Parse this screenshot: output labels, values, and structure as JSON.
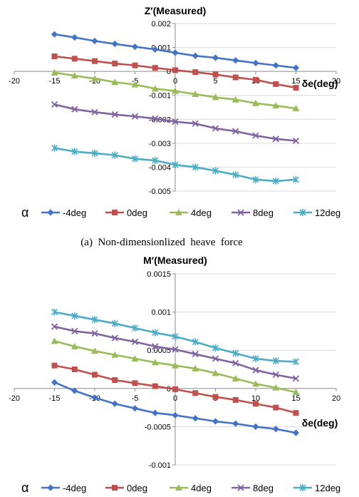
{
  "chart_data": [
    {
      "type": "line",
      "title": "Z′(Measured)",
      "xlabel": "δe(deg)",
      "ylabel": "",
      "xlim": [
        -20,
        20
      ],
      "ylim": [
        -0.005,
        0.002
      ],
      "xticks": [
        -20,
        -15,
        -10,
        -5,
        0,
        5,
        10,
        15,
        20
      ],
      "yticks": [
        -0.005,
        -0.004,
        -0.003,
        -0.002,
        -0.001,
        0,
        0.001,
        0.002
      ],
      "ytick_labels": [
        "-0.005",
        "-0.004",
        "-0.003",
        "-0.002",
        "-0.001",
        "0",
        "0.001",
        "0.002"
      ],
      "grid": "horizontal",
      "legend_position": "bottom",
      "legend_prefix": "α",
      "x": [
        -15,
        -12.5,
        -10,
        -7.5,
        -5,
        -2.5,
        0,
        2.5,
        5,
        7.5,
        10,
        12.5,
        15
      ],
      "series": [
        {
          "name": "-4deg",
          "color": "#4472C4",
          "marker": "diamond",
          "values": [
            0.00155,
            0.00142,
            0.00127,
            0.00115,
            0.00103,
            0.00092,
            0.00078,
            0.00065,
            0.00057,
            0.00046,
            0.00035,
            0.00025,
            0.00015
          ]
        },
        {
          "name": "0deg",
          "color": "#C0504D",
          "marker": "square",
          "values": [
            0.00063,
            0.00053,
            0.00043,
            0.00033,
            0.00025,
            0.00015,
            5e-05,
            -3e-05,
            -0.00013,
            -0.00025,
            -0.00035,
            -0.00053,
            -0.00068
          ]
        },
        {
          "name": "4deg",
          "color": "#9BBB59",
          "marker": "triangle",
          "values": [
            -5e-05,
            -0.00018,
            -0.0003,
            -0.00045,
            -0.00055,
            -0.00072,
            -0.00082,
            -0.00095,
            -0.00108,
            -0.00118,
            -0.00133,
            -0.00143,
            -0.00155
          ]
        },
        {
          "name": "8deg",
          "color": "#8064A2",
          "marker": "x",
          "values": [
            -0.00138,
            -0.00158,
            -0.0017,
            -0.0018,
            -0.00188,
            -0.00197,
            -0.0021,
            -0.00218,
            -0.00238,
            -0.0025,
            -0.00268,
            -0.00282,
            -0.0029
          ]
        },
        {
          "name": "12deg",
          "color": "#4BACC6",
          "marker": "star",
          "values": [
            -0.0032,
            -0.00335,
            -0.00342,
            -0.0035,
            -0.00365,
            -0.00372,
            -0.0039,
            -0.004,
            -0.00415,
            -0.00432,
            -0.00452,
            -0.00458,
            -0.00452
          ]
        }
      ],
      "caption": "(a)  Non-dimensionlized  heave  force"
    },
    {
      "type": "line",
      "title": "M′(Measured)",
      "xlabel": "δe(deg)",
      "ylabel": "",
      "xlim": [
        -20,
        20
      ],
      "ylim": [
        -0.001,
        0.0015
      ],
      "xticks": [
        -20,
        -15,
        -10,
        -5,
        0,
        5,
        10,
        15,
        20
      ],
      "yticks": [
        -0.001,
        -0.0005,
        0,
        0.0005,
        0.001,
        0.0015
      ],
      "ytick_labels": [
        "-0.001",
        "-0.0005",
        "0",
        "0.0005",
        "0.001",
        "0.0015"
      ],
      "grid": "horizontal",
      "legend_position": "bottom",
      "legend_prefix": "α",
      "x": [
        -15,
        -12.5,
        -10,
        -7.5,
        -5,
        -2.5,
        0,
        2.5,
        5,
        7.5,
        10,
        12.5,
        15
      ],
      "series": [
        {
          "name": "-4deg",
          "color": "#4472C4",
          "marker": "diamond",
          "values": [
            8e-05,
            -3e-05,
            -0.00012,
            -0.0002,
            -0.00026,
            -0.00032,
            -0.00035,
            -0.00039,
            -0.00043,
            -0.00046,
            -0.0005,
            -0.00053,
            -0.00058
          ]
        },
        {
          "name": "0deg",
          "color": "#C0504D",
          "marker": "square",
          "values": [
            0.0003,
            0.00025,
            0.00018,
            0.00011,
            7e-05,
            3e-05,
            -1e-05,
            -6e-05,
            -0.00011,
            -0.00015,
            -0.0002,
            -0.00025,
            -0.00032
          ]
        },
        {
          "name": "4deg",
          "color": "#9BBB59",
          "marker": "triangle",
          "values": [
            0.00062,
            0.00055,
            0.00049,
            0.00044,
            0.00039,
            0.00034,
            0.0003,
            0.00026,
            0.0002,
            0.00013,
            6e-05,
            1e-05,
            -5e-05
          ]
        },
        {
          "name": "8deg",
          "color": "#8064A2",
          "marker": "x",
          "values": [
            0.00081,
            0.00075,
            0.00072,
            0.00066,
            0.00061,
            0.00055,
            0.00051,
            0.00045,
            0.00039,
            0.00033,
            0.00024,
            0.00018,
            0.00013
          ]
        },
        {
          "name": "12deg",
          "color": "#4BACC6",
          "marker": "star",
          "values": [
            0.001,
            0.00095,
            0.0009,
            0.00085,
            0.00079,
            0.00073,
            0.00068,
            0.00061,
            0.00053,
            0.00046,
            0.00039,
            0.00036,
            0.00035
          ]
        }
      ],
      "caption": ""
    }
  ]
}
